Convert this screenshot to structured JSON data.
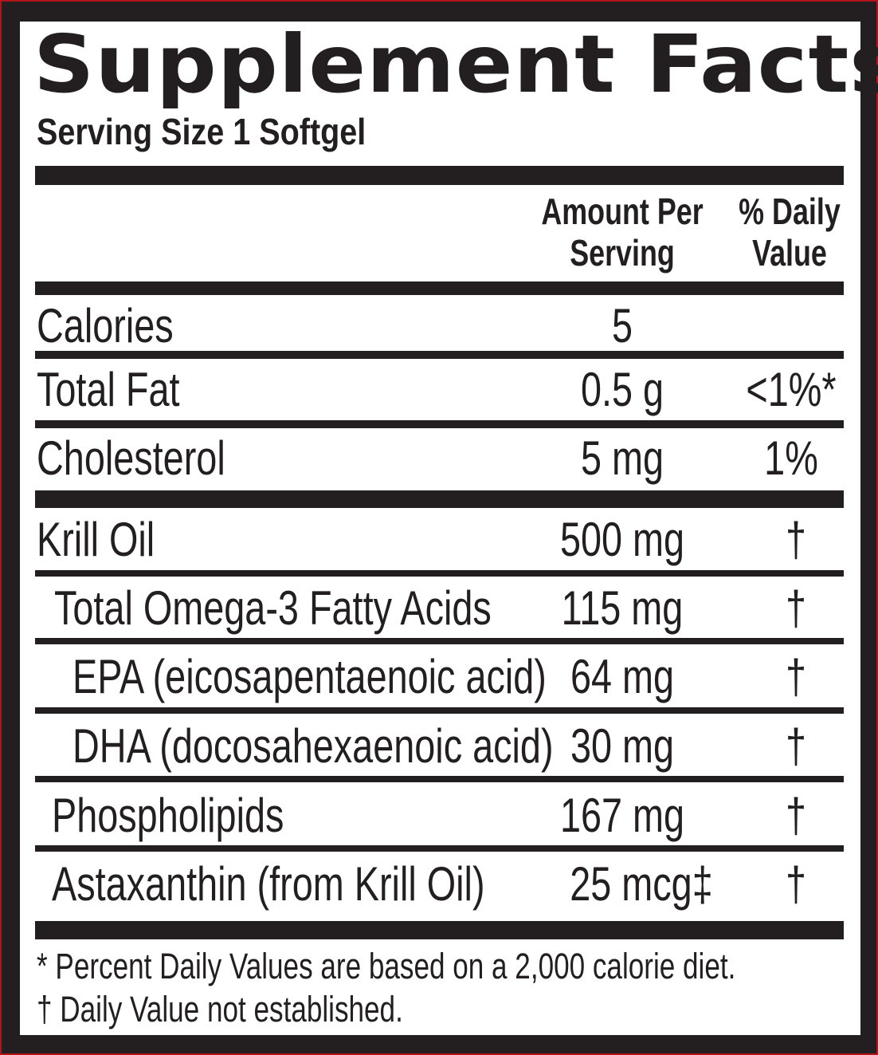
{
  "title": "Supplement Facts",
  "serving_size": "Serving Size 1 Softgel",
  "header": {
    "amount_line1": "Amount Per",
    "amount_line2": "Serving",
    "dv_line1": "% Daily",
    "dv_line2": "Value"
  },
  "rows": [
    {
      "name": "Calories",
      "amount": "5",
      "dv": ""
    },
    {
      "name": "Total Fat",
      "amount": "0.5 g",
      "dv": "<1%*"
    },
    {
      "name": "Cholesterol",
      "amount": "5 mg",
      "dv": "1%"
    },
    {
      "name": "Krill Oil",
      "amount": "500 mg",
      "dv": "†"
    },
    {
      "name": "Total Omega-3 Fatty Acids",
      "amount": "115 mg",
      "dv": "†"
    },
    {
      "name": "EPA (eicosapentaenoic acid)",
      "amount": "64 mg",
      "dv": "†"
    },
    {
      "name": "DHA (docosahexaenoic acid)",
      "amount": "30 mg",
      "dv": "†"
    },
    {
      "name": "Phospholipids",
      "amount": "167 mg",
      "dv": "†"
    },
    {
      "name": "Astaxanthin (from Krill Oil)",
      "amount": "25 mcg‡",
      "dv": "†"
    }
  ],
  "footnotes": [
    "* Percent Daily Values are based on a 2,000 calorie diet.",
    "† Daily Value not established."
  ],
  "colors": {
    "text": "#231f20",
    "outer_edge": "#b3141b"
  }
}
